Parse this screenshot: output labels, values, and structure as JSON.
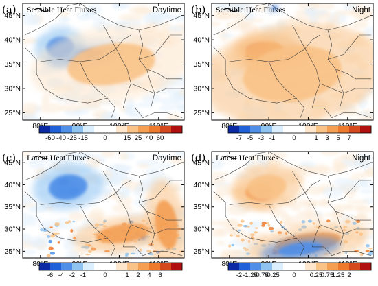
{
  "chart_data": [
    {
      "type": "heatmap",
      "panel": "(a)",
      "title": "Sensible Heat Fluxes",
      "period": "Daytime",
      "x_ticks": [
        "80°E",
        "90°E",
        "100°E",
        "110°E"
      ],
      "x_tick_values": [
        80,
        90,
        100,
        110
      ],
      "y_ticks": [
        "45°N",
        "40°N",
        "35°N",
        "30°N",
        "25°N"
      ],
      "y_tick_values": [
        45,
        40,
        35,
        30,
        25
      ],
      "xlim": [
        75.5,
        116.5
      ],
      "ylim": [
        23.5,
        47.5
      ],
      "colorbar": {
        "labels": [
          "-60",
          "-40",
          "-25",
          "-15",
          "0",
          "15",
          "25",
          "40",
          "60"
        ],
        "colors": [
          "#0b2aa3",
          "#1f5fd8",
          "#4f8fe8",
          "#8ec3f2",
          "#dcefff",
          "#ffffff",
          "#ffffff",
          "#fde6cc",
          "#f9c388",
          "#f49f52",
          "#ee7a2e",
          "#d44a1e",
          "#b01010"
        ]
      },
      "features": [
        {
          "name": "negative",
          "lon": 91,
          "lat": 36.8,
          "magnitude": 0.95,
          "rx": 7.5,
          "ry": 1.6
        },
        {
          "name": "negative",
          "lon": 86.5,
          "lat": 37.2,
          "magnitude": 0.45,
          "rx": 3.5,
          "ry": 1.8
        },
        {
          "name": "negative",
          "lon": 85,
          "lat": 38.5,
          "magnitude": 0.25,
          "rx": 5,
          "ry": 3
        },
        {
          "name": "positive",
          "lon": 98,
          "lat": 35,
          "magnitude": 0.15,
          "rx": 16,
          "ry": 6
        }
      ]
    },
    {
      "type": "heatmap",
      "panel": "(b)",
      "title": "Sensible Heat Fluxes",
      "period": "Night",
      "x_ticks": [
        "80°E",
        "90°E",
        "100°E",
        "110°E"
      ],
      "x_tick_values": [
        80,
        90,
        100,
        110
      ],
      "y_ticks": [
        "45°N",
        "40°N",
        "35°N",
        "30°N",
        "25°N"
      ],
      "y_tick_values": [
        45,
        40,
        35,
        30,
        25
      ],
      "xlim": [
        75.5,
        116.5
      ],
      "ylim": [
        23.5,
        47.5
      ],
      "colorbar": {
        "labels": [
          "-7",
          "-5",
          "-3",
          "-1",
          "0",
          "1",
          "3",
          "5",
          "7"
        ],
        "colors": [
          "#0b2aa3",
          "#1f5fd8",
          "#4f8fe8",
          "#8ec3f2",
          "#dcefff",
          "#ffffff",
          "#ffffff",
          "#fde6cc",
          "#f9c388",
          "#f49f52",
          "#ee7a2e",
          "#d44a1e",
          "#b01010"
        ]
      },
      "features": [
        {
          "name": "positive",
          "lon": 92,
          "lat": 36.5,
          "magnitude": 0.95,
          "rx": 7,
          "ry": 1.8
        },
        {
          "name": "positive",
          "lon": 87,
          "lat": 38.3,
          "magnitude": 0.7,
          "rx": 4,
          "ry": 1.6
        },
        {
          "name": "positive",
          "lon": 89,
          "lat": 37.5,
          "magnitude": 0.45,
          "rx": 7,
          "ry": 3
        },
        {
          "name": "positive",
          "lon": 96,
          "lat": 33,
          "magnitude": 0.2,
          "rx": 18,
          "ry": 8
        },
        {
          "name": "negative",
          "lon": 91.5,
          "lat": 46.5,
          "magnitude": 0.4,
          "rx": 0.8,
          "ry": 0.6
        }
      ]
    },
    {
      "type": "heatmap",
      "panel": "(c)",
      "title": "Latent Heat Fluxes",
      "period": "Daytime",
      "x_ticks": [
        "80°E",
        "90°E",
        "100°E",
        "110°E"
      ],
      "x_tick_values": [
        80,
        90,
        100,
        110
      ],
      "y_ticks": [
        "45°N",
        "40°N",
        "35°N",
        "30°N",
        "25°N"
      ],
      "y_tick_values": [
        45,
        40,
        35,
        30,
        25
      ],
      "xlim": [
        75.5,
        116.5
      ],
      "ylim": [
        23.5,
        47.5
      ],
      "colorbar": {
        "labels": [
          "-6",
          "-4",
          "-2",
          "-1",
          "0",
          "1",
          "2",
          "4",
          "6"
        ],
        "colors": [
          "#0b2aa3",
          "#1f5fd8",
          "#4f8fe8",
          "#8ec3f2",
          "#dcefff",
          "#ffffff",
          "#ffffff",
          "#fde6cc",
          "#f9c388",
          "#f49f52",
          "#ee7a2e",
          "#d44a1e",
          "#b01010"
        ]
      },
      "features": [
        {
          "name": "negative",
          "lon": 86,
          "lat": 40.5,
          "magnitude": 0.95,
          "rx": 2,
          "ry": 1.3
        },
        {
          "name": "negative",
          "lon": 88,
          "lat": 38.5,
          "magnitude": 0.55,
          "rx": 2.5,
          "ry": 1.2
        },
        {
          "name": "negative",
          "lon": 85.5,
          "lat": 38.5,
          "magnitude": 0.4,
          "rx": 1.8,
          "ry": 1.2
        },
        {
          "name": "negative",
          "lon": 87,
          "lat": 39.5,
          "magnitude": 0.2,
          "rx": 7,
          "ry": 4
        },
        {
          "name": "negative",
          "lon": 106,
          "lat": 28.2,
          "magnitude": 0.9,
          "rx": 0.9,
          "ry": 0.7
        },
        {
          "name": "positive",
          "lon": 101,
          "lat": 29,
          "magnitude": 0.35,
          "rx": 10,
          "ry": 3
        },
        {
          "name": "positive",
          "lon": 112,
          "lat": 31,
          "magnitude": 0.3,
          "rx": 4,
          "ry": 8
        }
      ]
    },
    {
      "type": "heatmap",
      "panel": "(d)",
      "title": "Latent Heat Fluxes",
      "period": "Night",
      "x_ticks": [
        "80°E",
        "90°E",
        "100°E",
        "110°E"
      ],
      "x_tick_values": [
        80,
        90,
        100,
        110
      ],
      "y_ticks": [
        "45°N",
        "40°N",
        "35°N",
        "30°N",
        "25°N"
      ],
      "y_tick_values": [
        45,
        40,
        35,
        30,
        25
      ],
      "xlim": [
        75.5,
        116.5
      ],
      "ylim": [
        23.5,
        47.5
      ],
      "colorbar": {
        "labels": [
          "-2",
          "-1.25",
          "-0.75",
          "-0.25",
          "0",
          "0.25",
          "0.75",
          "1.25",
          "2"
        ],
        "colors": [
          "#0b2aa3",
          "#1f5fd8",
          "#4f8fe8",
          "#8ec3f2",
          "#dcefff",
          "#ffffff",
          "#ffffff",
          "#fde6cc",
          "#f9c388",
          "#f49f52",
          "#ee7a2e",
          "#d44a1e",
          "#b01010"
        ]
      },
      "features": [
        {
          "name": "positive",
          "lon": 88.5,
          "lat": 37.5,
          "magnitude": 0.95,
          "rx": 2.8,
          "ry": 1.4
        },
        {
          "name": "positive",
          "lon": 87.5,
          "lat": 38.5,
          "magnitude": 0.5,
          "rx": 5,
          "ry": 2.5
        },
        {
          "name": "positive",
          "lon": 89.5,
          "lat": 39.5,
          "magnitude": 0.2,
          "rx": 7,
          "ry": 4
        },
        {
          "name": "positive",
          "lon": 92,
          "lat": 24.8,
          "magnitude": 0.9,
          "rx": 1.4,
          "ry": 0.5
        },
        {
          "name": "positive",
          "lon": 100,
          "lat": 27,
          "magnitude": 0.3,
          "rx": 12,
          "ry": 3
        },
        {
          "name": "negative",
          "lon": 98,
          "lat": 25.5,
          "magnitude": 0.35,
          "rx": 8,
          "ry": 2
        }
      ]
    }
  ]
}
